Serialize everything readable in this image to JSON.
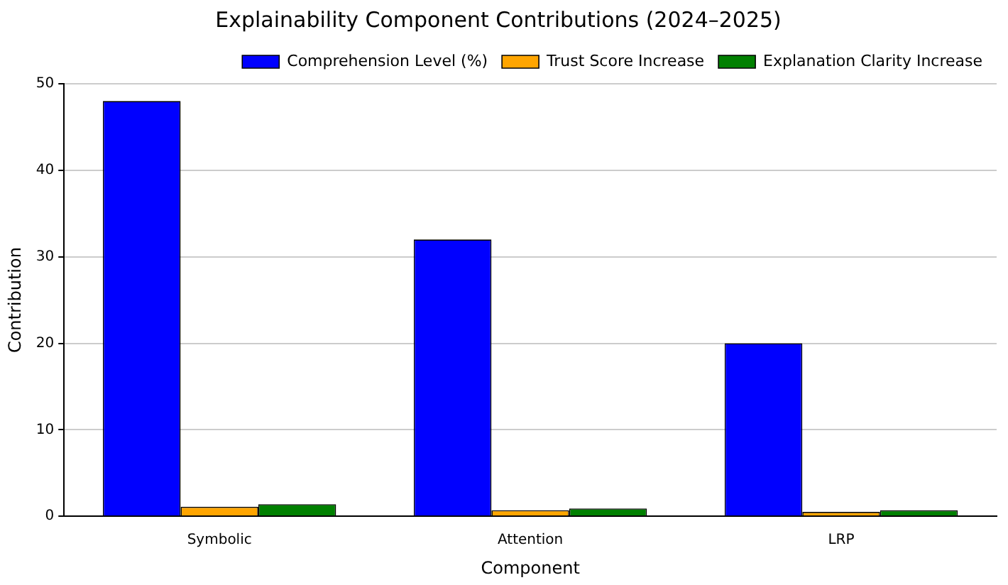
{
  "chart_data": {
    "type": "bar",
    "title": "Explainability Component Contributions (2024–2025)",
    "xlabel": "Component",
    "ylabel": "Contribution",
    "categories": [
      "Symbolic",
      "Attention",
      "LRP"
    ],
    "series": [
      {
        "name": "Comprehension Level (%)",
        "color": "#0000ff",
        "values": [
          48,
          32,
          20
        ]
      },
      {
        "name": "Trust Score Increase",
        "color": "#ffa500",
        "values": [
          1.1,
          0.7,
          0.5
        ]
      },
      {
        "name": "Explanation Clarity Increase",
        "color": "#008000",
        "values": [
          1.4,
          0.9,
          0.7
        ]
      }
    ],
    "ylim": [
      0,
      50
    ],
    "yticks": [
      0,
      10,
      20,
      30,
      40,
      50
    ],
    "grid": "y",
    "legend": "top right"
  }
}
